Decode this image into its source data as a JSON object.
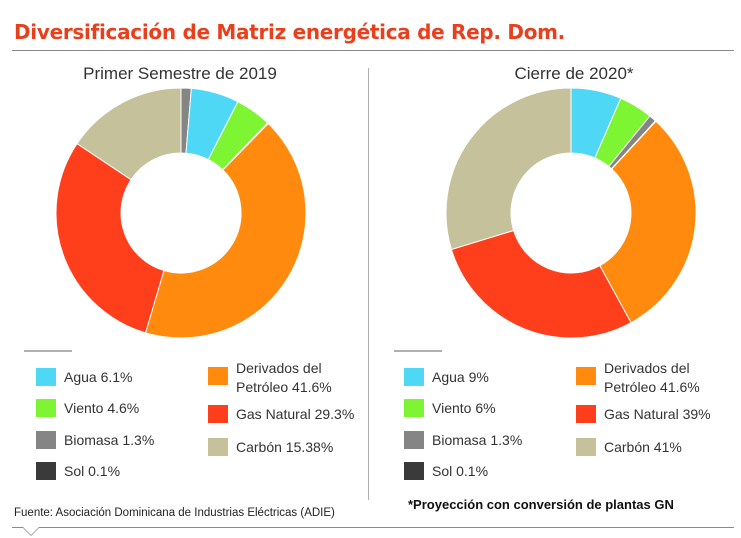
{
  "title": "Diversificación de Matriz energética de Rep. Dom.",
  "footer": {
    "source": "Fuente: Asociación Dominicana de Industrias Eléctricas (ADIE)",
    "note": "*Proyección con conversión de plantas GN"
  },
  "colors": {
    "Agua": "#4ed8f6",
    "Viento": "#7ef532",
    "Biomasa": "#858585",
    "Sol": "#3a3a3a",
    "Derivados": "#ff8a0d",
    "Gas": "#ff3e1c",
    "Carbon": "#c4c19b"
  },
  "chart_data": [
    {
      "type": "pie",
      "title": "Primer Semestre de 2019",
      "slices": [
        {
          "key": "Biomasa",
          "name": "Biomasa",
          "value": 1.3,
          "legend": "Biomasa 1.3%"
        },
        {
          "key": "Agua",
          "name": "Agua",
          "value": 6.1,
          "legend": "Agua 6.1%"
        },
        {
          "key": "Viento",
          "name": "Viento",
          "value": 4.6,
          "legend": "Viento 4.6%"
        },
        {
          "key": "Sol",
          "name": "Sol",
          "value": 0.1,
          "legend": "Sol 0.1%"
        },
        {
          "key": "Derivados",
          "name": "Derivados del Petróleo",
          "value": 41.6,
          "legend": "Derivados del Petróleo 41.6%"
        },
        {
          "key": "Gas",
          "name": "Gas Natural",
          "value": 29.3,
          "legend": "Gas Natural 29.3%"
        },
        {
          "key": "Carbon",
          "name": "Carbón",
          "value": 15.38,
          "legend": "Carbón 15.38%"
        }
      ]
    },
    {
      "type": "pie",
      "title": "Cierre de 2020*",
      "slices": [
        {
          "key": "Agua",
          "name": "Agua",
          "value": 9,
          "legend": "Agua 9%"
        },
        {
          "key": "Viento",
          "name": "Viento",
          "value": 6,
          "legend": "Viento 6%"
        },
        {
          "key": "Biomasa",
          "name": "Biomasa",
          "value": 1.3,
          "legend": "Biomasa 1.3%"
        },
        {
          "key": "Sol",
          "name": "Sol",
          "value": 0.1,
          "legend": "Sol 0.1%"
        },
        {
          "key": "Derivados",
          "name": "Derivados del Petróleo",
          "value": 41.6,
          "legend": "Derivados del Petróleo 41.6%"
        },
        {
          "key": "Gas",
          "name": "Gas Natural",
          "value": 39,
          "legend": "Gas Natural 39%"
        },
        {
          "key": "Carbon",
          "name": "Carbón",
          "value": 41,
          "legend": "Carbón 41%"
        }
      ]
    }
  ],
  "legends": [
    {
      "agua": "Agua 6.1%",
      "viento": "Viento 4.6%",
      "biomasa": "Biomasa 1.3%",
      "sol": "Sol 0.1%",
      "derivados_line1": "Derivados del",
      "derivados_line2": "Petróleo 41.6%",
      "gas": "Gas Natural 29.3%",
      "carbon": "Carbón 15.38%"
    },
    {
      "agua": "Agua 9%",
      "viento": "Viento 6%",
      "biomasa": "Biomasa 1.3%",
      "sol": "Sol 0.1%",
      "derivados_line1": "Derivados del",
      "derivados_line2": "Petróleo 41.6%",
      "gas": "Gas Natural 39%",
      "carbon": "Carbón 41%"
    }
  ]
}
